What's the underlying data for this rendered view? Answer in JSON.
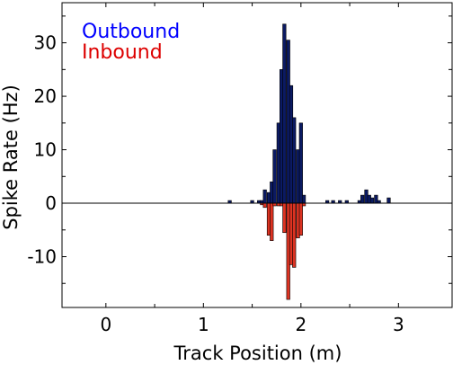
{
  "chart_data": {
    "type": "bar",
    "title": "",
    "xlabel": "Track Position (m)",
    "ylabel": "Spike Rate (Hz)",
    "xlim": [
      -0.45,
      3.55
    ],
    "ylim": [
      -19.5,
      37.5
    ],
    "xticks": [
      0,
      1,
      2,
      3
    ],
    "yticks": [
      -10,
      0,
      10,
      20,
      30
    ],
    "grid": false,
    "legend_position": "top-left",
    "bin_width": 0.0333,
    "series": [
      {
        "name": "Outbound",
        "color": "#0000ff",
        "bar_color": "#0b1a63",
        "x": [
          1.27,
          1.5,
          1.57,
          1.6,
          1.63,
          1.67,
          1.7,
          1.73,
          1.77,
          1.8,
          1.83,
          1.87,
          1.9,
          1.93,
          1.97,
          2.0,
          2.03,
          2.27,
          2.33,
          2.4,
          2.47,
          2.6,
          2.63,
          2.67,
          2.7,
          2.73,
          2.77,
          2.8,
          2.9
        ],
        "values": [
          0.5,
          0.5,
          0.5,
          0.5,
          2.5,
          2.0,
          4.0,
          10.0,
          15.0,
          25.0,
          33.5,
          30.5,
          22.0,
          16.0,
          10.0,
          15.0,
          1.5,
          0.5,
          0.5,
          0.5,
          0.5,
          0.5,
          1.5,
          2.5,
          1.5,
          1.0,
          1.5,
          0.5,
          1.0
        ]
      },
      {
        "name": "Inbound",
        "color": "#dd0000",
        "bar_color": "#dd3322",
        "x": [
          1.6,
          1.63,
          1.67,
          1.7,
          1.73,
          1.77,
          1.8,
          1.83,
          1.87,
          1.9,
          1.93,
          1.97,
          2.0,
          2.03
        ],
        "values": [
          -0.3,
          -0.8,
          -6.0,
          -7.0,
          -0.5,
          -0.5,
          -0.5,
          -5.5,
          -18.0,
          -11.5,
          -12.0,
          -6.5,
          -6.0,
          -0.5
        ]
      }
    ]
  }
}
